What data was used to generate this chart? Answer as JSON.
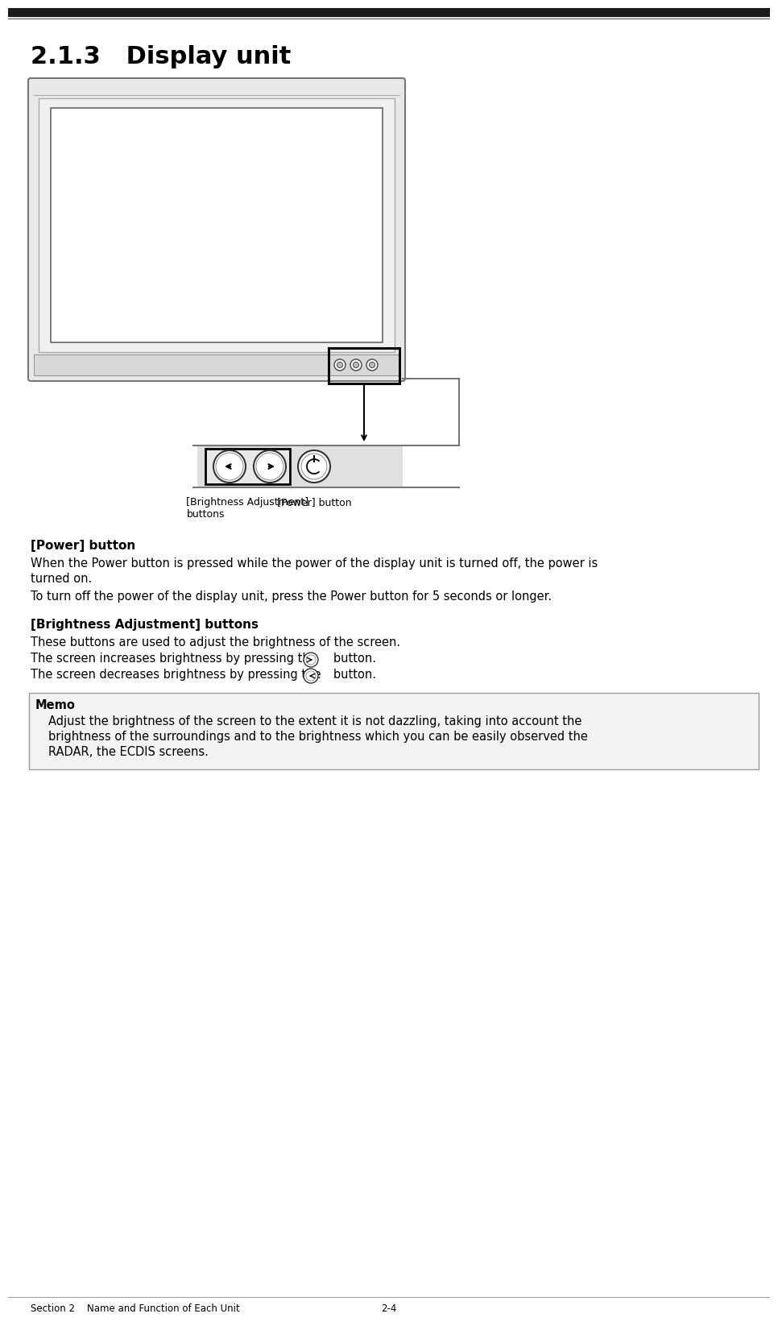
{
  "title": "2.1.3   Display unit",
  "top_bar_color": "#1a1a1a",
  "section_header": "Section 2    Name and Function of Each Unit",
  "page_number": "2-4",
  "power_button_heading": "[Power] button",
  "power_button_text1": "When the Power button is pressed while the power of the display unit is turned off, the power is",
  "power_button_text2": "turned on.",
  "power_button_text3": "To turn off the power of the display unit, press the Power button for 5 seconds or longer.",
  "brightness_heading": "[Brightness Adjustment] buttons",
  "brightness_text1": "These buttons are used to adjust the brightness of the screen.",
  "brightness_text2": "The screen increases brightness by pressing the",
  "brightness_text3": "   button.",
  "brightness_text4": "The screen decreases brightness by pressing the",
  "brightness_text5": "   button.",
  "memo_title": "Memo",
  "memo_text1": "Adjust the brightness of the screen to the extent it is not dazzling, taking into account the",
  "memo_text2": "brightness of the surroundings and to the brightness which you can be easily observed the",
  "memo_text3": "RADAR, the ECDIS screens.",
  "label_brightness": "[Brightness Adjustment]\nbuttons",
  "label_power": "[Power] button",
  "bg_color": "#ffffff",
  "text_color": "#000000",
  "memo_bg": "#f2f2f2",
  "monitor_outer_color": "#555555",
  "monitor_inner_color": "#888888",
  "figw": 9.46,
  "figh": 16.15,
  "dpi": 100
}
